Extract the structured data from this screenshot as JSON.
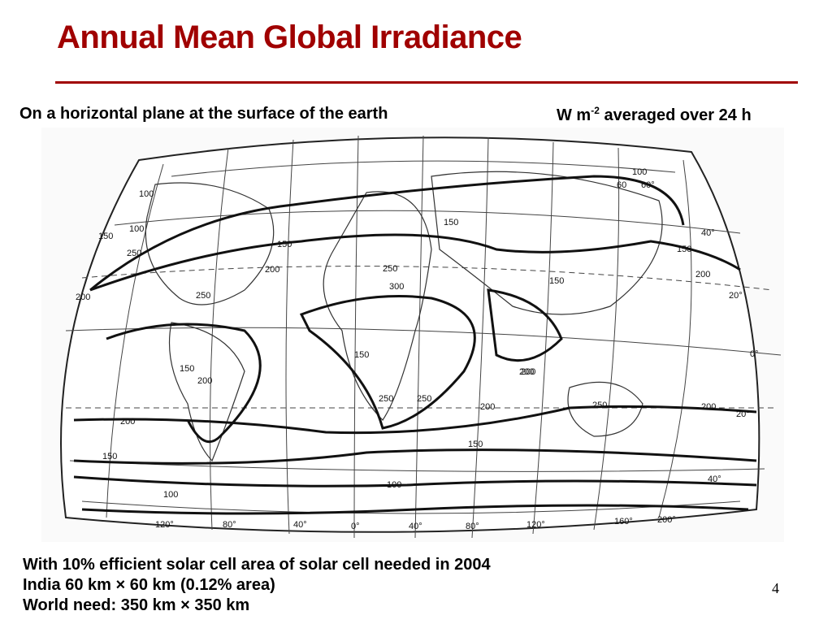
{
  "slide": {
    "title": "Annual Mean Global Irradiance",
    "subtitle_left": "On a horizontal plane at the surface of the earth",
    "subtitle_right": {
      "unit_base": "W m",
      "exponent": "-2",
      "suffix": " averaged over 24 h"
    },
    "bottom_lines": [
      "With 10% efficient solar cell area of solar cell needed in 2004",
      "India  60 km × 60 km (0.12% area)",
      "World need: 350 km × 350 km"
    ],
    "page_number": "4"
  },
  "map": {
    "contour_labels": [
      "100",
      "150",
      "250",
      "200",
      "250",
      "150",
      "200",
      "150",
      "200",
      "100",
      "150",
      "200",
      "250",
      "300",
      "150",
      "250",
      "250",
      "100",
      "150",
      "200",
      "150",
      "200",
      "250",
      "200",
      "150",
      "100",
      "60",
      "100",
      "150",
      "200",
      "200"
    ],
    "latitude_labels_right": [
      "60°",
      "40°",
      "20°",
      "0°",
      "20°",
      "40°"
    ],
    "longitude_labels_bottom": [
      "120°",
      "80°",
      "40°",
      "0°",
      "40°",
      "80°",
      "120°",
      "160°",
      "200°"
    ]
  },
  "colors": {
    "title": "#a00000",
    "rule": "#a00000",
    "text": "#000000"
  }
}
